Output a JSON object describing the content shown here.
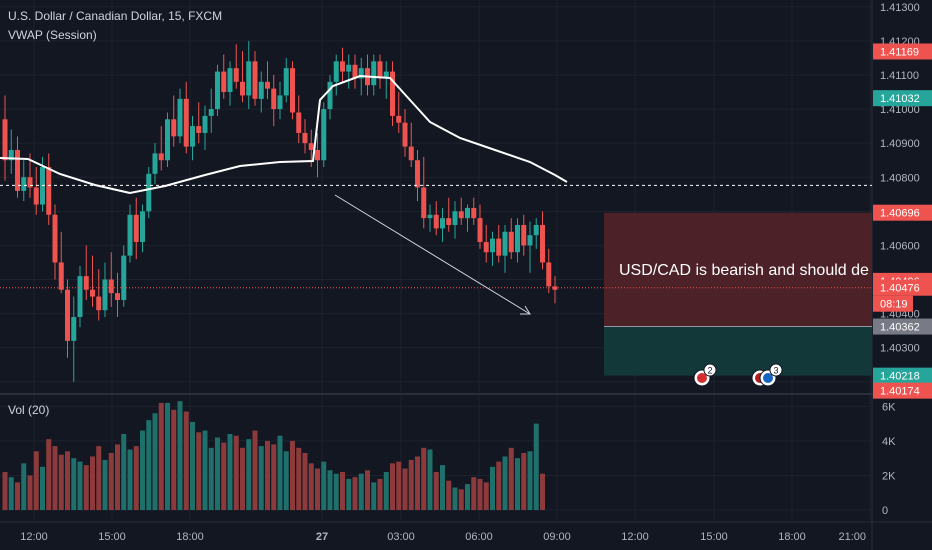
{
  "header": {
    "symbol_title": "U.S. Dollar / Canadian Dollar, 15, FXCM",
    "indicator": "VWAP (Session)",
    "volume_label": "Vol (20)"
  },
  "annotation_text": "USD/CAD is bearish and should de",
  "countdown": "08:19",
  "events": [
    {
      "name": "ca-flag",
      "count": "2"
    },
    {
      "name": "us-flag",
      "count": "3"
    }
  ],
  "colors": {
    "background": "#131722",
    "grid": "#1e222d",
    "up": "#26a69a",
    "down": "#ef5350",
    "vwap": "#ffffff",
    "stop_zone": "#4d2128",
    "target_zone": "#12383a"
  },
  "chart_data": {
    "type": "candlestick",
    "title": "U.S. Dollar / Canadian Dollar, 15, FXCM",
    "price_axis": {
      "ticks": [
        "1.41300",
        "1.41200",
        "1.41100",
        "1.41000",
        "1.40900",
        "1.40800",
        "1.40700",
        "1.40600",
        "1.40500",
        "1.40400",
        "1.40300",
        "1.40200"
      ],
      "labels": [
        {
          "value": "1.41169",
          "color": "#ef5350"
        },
        {
          "value": "1.41032",
          "color": "#26a69a"
        },
        {
          "value": "1.40696",
          "color": "#ef5350"
        },
        {
          "value": "1.40496",
          "color": "#ef5350"
        },
        {
          "value": "1.40476",
          "color": "#ef5350"
        },
        {
          "value": "1.40362",
          "color": "#787b86"
        },
        {
          "value": "1.40218",
          "color": "#26a69a"
        },
        {
          "value": "1.40174",
          "color": "#ef5350"
        }
      ],
      "range": [
        1.4017,
        1.4132
      ]
    },
    "time_axis": [
      "12:00",
      "15:00",
      "18:00",
      "27",
      "03:00",
      "06:00",
      "09:00",
      "12:00",
      "15:00",
      "18:00",
      "21:00"
    ],
    "volume_axis": [
      "6K",
      "4K",
      "2K",
      "0"
    ],
    "volume_range": [
      0,
      6600
    ],
    "vwap_level": 1.40776,
    "last_price": 1.40476,
    "position": {
      "entry": 1.40362,
      "stop": 1.40696,
      "target": 1.40218
    },
    "candles": [
      [
        1.4097,
        1.4104,
        1.4079,
        1.4085
      ],
      [
        1.4085,
        1.4094,
        1.4081,
        1.4088
      ],
      [
        1.4088,
        1.4092,
        1.4074,
        1.4076
      ],
      [
        1.4076,
        1.4085,
        1.4073,
        1.408
      ],
      [
        1.408,
        1.4087,
        1.4074,
        1.4077
      ],
      [
        1.4077,
        1.4083,
        1.4069,
        1.4072
      ],
      [
        1.4072,
        1.4086,
        1.407,
        1.4083
      ],
      [
        1.4083,
        1.4087,
        1.4066,
        1.4069
      ],
      [
        1.4069,
        1.4072,
        1.405,
        1.4055
      ],
      [
        1.4055,
        1.4064,
        1.4046,
        1.4047
      ],
      [
        1.4047,
        1.405,
        1.4027,
        1.4032
      ],
      [
        1.4032,
        1.4045,
        1.402,
        1.4039
      ],
      [
        1.4039,
        1.4054,
        1.4036,
        1.4051
      ],
      [
        1.4051,
        1.406,
        1.4044,
        1.4047
      ],
      [
        1.4047,
        1.4057,
        1.4042,
        1.4045
      ],
      [
        1.4045,
        1.4053,
        1.4038,
        1.4041
      ],
      [
        1.4041,
        1.4055,
        1.4039,
        1.405
      ],
      [
        1.405,
        1.4058,
        1.4042,
        1.4046
      ],
      [
        1.4046,
        1.4052,
        1.4039,
        1.4044
      ],
      [
        1.4044,
        1.406,
        1.4042,
        1.4057
      ],
      [
        1.4057,
        1.4072,
        1.4055,
        1.4069
      ],
      [
        1.4069,
        1.4074,
        1.4056,
        1.4061
      ],
      [
        1.4061,
        1.4072,
        1.4058,
        1.407
      ],
      [
        1.407,
        1.4083,
        1.4068,
        1.4081
      ],
      [
        1.4081,
        1.409,
        1.4078,
        1.4087
      ],
      [
        1.4087,
        1.4095,
        1.4082,
        1.4085
      ],
      [
        1.4085,
        1.4099,
        1.4083,
        1.4097
      ],
      [
        1.4097,
        1.4104,
        1.4089,
        1.4092
      ],
      [
        1.4092,
        1.4106,
        1.409,
        1.4103
      ],
      [
        1.4103,
        1.4108,
        1.4087,
        1.4089
      ],
      [
        1.4089,
        1.4098,
        1.4085,
        1.4095
      ],
      [
        1.4095,
        1.4102,
        1.409,
        1.4093
      ],
      [
        1.4093,
        1.4101,
        1.4088,
        1.4098
      ],
      [
        1.4098,
        1.4106,
        1.4093,
        1.41
      ],
      [
        1.41,
        1.4113,
        1.4098,
        1.4111
      ],
      [
        1.4111,
        1.4116,
        1.4103,
        1.4105
      ],
      [
        1.4105,
        1.4114,
        1.4101,
        1.4112
      ],
      [
        1.4112,
        1.4119,
        1.4106,
        1.4108
      ],
      [
        1.4108,
        1.4117,
        1.4102,
        1.4104
      ],
      [
        1.4104,
        1.412,
        1.41,
        1.4114
      ],
      [
        1.4114,
        1.4117,
        1.4101,
        1.4103
      ],
      [
        1.4103,
        1.4111,
        1.4099,
        1.4108
      ],
      [
        1.4108,
        1.4114,
        1.4103,
        1.4106
      ],
      [
        1.4106,
        1.411,
        1.4095,
        1.41
      ],
      [
        1.41,
        1.4108,
        1.4097,
        1.4104
      ],
      [
        1.4104,
        1.4115,
        1.4102,
        1.4112
      ],
      [
        1.4112,
        1.4114,
        1.4097,
        1.4099
      ],
      [
        1.4099,
        1.4104,
        1.409,
        1.4093
      ],
      [
        1.4093,
        1.4097,
        1.4087,
        1.409
      ],
      [
        1.409,
        1.4094,
        1.4083,
        1.4088
      ],
      [
        1.4088,
        1.4093,
        1.408,
        1.4085
      ],
      [
        1.4085,
        1.4102,
        1.4083,
        1.41
      ],
      [
        1.41,
        1.411,
        1.4097,
        1.4108
      ],
      [
        1.4108,
        1.4116,
        1.4104,
        1.4114
      ],
      [
        1.4114,
        1.4118,
        1.4108,
        1.4111
      ],
      [
        1.4111,
        1.4116,
        1.4106,
        1.4113
      ],
      [
        1.4113,
        1.4116,
        1.4106,
        1.4109
      ],
      [
        1.4109,
        1.4115,
        1.4104,
        1.4112
      ],
      [
        1.4112,
        1.4116,
        1.4104,
        1.4107
      ],
      [
        1.4107,
        1.4116,
        1.4104,
        1.4114
      ],
      [
        1.4114,
        1.4116,
        1.4106,
        1.4109
      ],
      [
        1.4109,
        1.4114,
        1.4103,
        1.4111
      ],
      [
        1.4111,
        1.4114,
        1.4095,
        1.4098
      ],
      [
        1.4098,
        1.4105,
        1.4093,
        1.4096
      ],
      [
        1.4096,
        1.41,
        1.4086,
        1.4089
      ],
      [
        1.4089,
        1.4096,
        1.4083,
        1.4085
      ],
      [
        1.4085,
        1.4088,
        1.4073,
        1.4077
      ],
      [
        1.4077,
        1.4086,
        1.4065,
        1.4068
      ],
      [
        1.4068,
        1.4072,
        1.4064,
        1.4069
      ],
      [
        1.4069,
        1.4073,
        1.4063,
        1.4065
      ],
      [
        1.4065,
        1.4071,
        1.4061,
        1.4068
      ],
      [
        1.4068,
        1.4074,
        1.4064,
        1.4066
      ],
      [
        1.4066,
        1.4073,
        1.4062,
        1.407
      ],
      [
        1.407,
        1.4074,
        1.4066,
        1.4068
      ],
      [
        1.4068,
        1.4072,
        1.4064,
        1.4071
      ],
      [
        1.4071,
        1.4074,
        1.4066,
        1.4068
      ],
      [
        1.4068,
        1.4072,
        1.4059,
        1.4061
      ],
      [
        1.4061,
        1.4066,
        1.4055,
        1.4058
      ],
      [
        1.4058,
        1.4064,
        1.4054,
        1.4062
      ],
      [
        1.4062,
        1.4066,
        1.4055,
        1.4057
      ],
      [
        1.4057,
        1.4066,
        1.4052,
        1.4064
      ],
      [
        1.4064,
        1.4068,
        1.4056,
        1.4058
      ],
      [
        1.4058,
        1.4068,
        1.4055,
        1.4066
      ],
      [
        1.4066,
        1.4069,
        1.4057,
        1.406
      ],
      [
        1.406,
        1.4067,
        1.4052,
        1.4063
      ],
      [
        1.4063,
        1.4068,
        1.4059,
        1.4066
      ],
      [
        1.4066,
        1.407,
        1.4053,
        1.4055
      ],
      [
        1.4055,
        1.4059,
        1.4046,
        1.4048
      ],
      [
        1.4048,
        1.4051,
        1.4043,
        1.4047
      ]
    ],
    "volumes": [
      2200,
      1900,
      1600,
      2700,
      2000,
      3400,
      2500,
      4100,
      3700,
      3200,
      3400,
      3000,
      2800,
      2600,
      3100,
      3700,
      2900,
      3300,
      3800,
      4400,
      3500,
      3700,
      4600,
      5200,
      5600,
      6200,
      6200,
      5800,
      6300,
      5700,
      5100,
      4500,
      4600,
      3600,
      4200,
      3900,
      4400,
      4300,
      3600,
      4100,
      4600,
      3700,
      4000,
      3800,
      4300,
      3400,
      4000,
      3600,
      3300,
      2700,
      2400,
      2800,
      2300,
      2100,
      2200,
      1800,
      1900,
      2100,
      2300,
      1600,
      1800,
      2200,
      2700,
      2800,
      2400,
      2900,
      3100,
      3600,
      3500,
      2200,
      2600,
      1700,
      1300,
      1200,
      1500,
      1900,
      1800,
      1600,
      2500,
      2800,
      3100,
      3600,
      3000,
      3300,
      3400,
      5000,
      2100,
      0,
      0
    ]
  }
}
